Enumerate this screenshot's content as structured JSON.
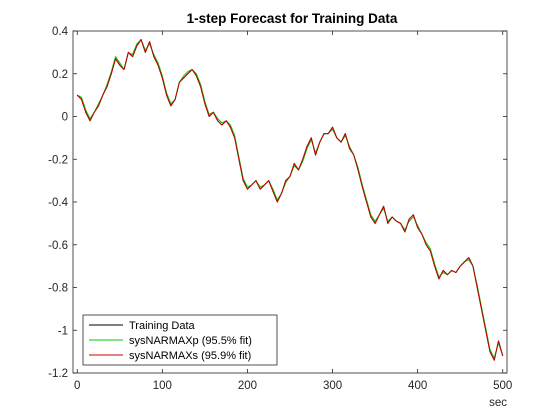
{
  "chart_data": {
    "type": "line",
    "title": "1-step Forecast for Training Data",
    "xlabel": "sec",
    "ylabel": "",
    "xlim": [
      -5,
      505
    ],
    "ylim": [
      -1.2,
      0.4
    ],
    "xticks": [
      0,
      100,
      200,
      300,
      400,
      500
    ],
    "yticks": [
      -1.2,
      -1,
      -0.8,
      -0.6,
      -0.4,
      -0.2,
      0,
      0.2,
      0.4
    ],
    "ytick_labels": [
      "-1.2",
      "-1",
      "-0.8",
      "-0.6",
      "-0.4",
      "-0.2",
      "0",
      "0.2",
      "0.4"
    ],
    "grid": false,
    "legend_position": "bottom-left",
    "x": [
      0,
      5,
      10,
      15,
      20,
      25,
      30,
      35,
      40,
      45,
      50,
      55,
      60,
      65,
      70,
      75,
      80,
      85,
      90,
      95,
      100,
      105,
      110,
      115,
      120,
      125,
      130,
      135,
      140,
      145,
      150,
      155,
      160,
      165,
      170,
      175,
      180,
      185,
      190,
      195,
      200,
      205,
      210,
      215,
      220,
      225,
      230,
      235,
      240,
      245,
      250,
      255,
      260,
      265,
      270,
      275,
      280,
      285,
      290,
      295,
      300,
      305,
      310,
      315,
      320,
      325,
      330,
      335,
      340,
      345,
      350,
      355,
      360,
      365,
      370,
      375,
      380,
      385,
      390,
      395,
      400,
      405,
      410,
      415,
      420,
      425,
      430,
      435,
      440,
      445,
      450,
      455,
      460,
      465,
      470,
      475,
      480,
      485,
      490,
      495,
      500
    ],
    "series": [
      {
        "name": "Training Data",
        "color": "#000000",
        "values": [
          0.1,
          0.08,
          0.02,
          -0.02,
          0.02,
          0.05,
          0.1,
          0.14,
          0.2,
          0.27,
          0.24,
          0.22,
          0.3,
          0.28,
          0.33,
          0.36,
          0.3,
          0.35,
          0.28,
          0.24,
          0.18,
          0.1,
          0.05,
          0.08,
          0.16,
          0.18,
          0.2,
          0.22,
          0.19,
          0.14,
          0.06,
          0.0,
          0.02,
          -0.02,
          -0.04,
          -0.02,
          -0.05,
          -0.1,
          -0.2,
          -0.3,
          -0.34,
          -0.32,
          -0.3,
          -0.34,
          -0.32,
          -0.3,
          -0.35,
          -0.4,
          -0.36,
          -0.3,
          -0.28,
          -0.22,
          -0.25,
          -0.2,
          -0.14,
          -0.1,
          -0.18,
          -0.12,
          -0.08,
          -0.08,
          -0.05,
          -0.1,
          -0.12,
          -0.08,
          -0.15,
          -0.18,
          -0.25,
          -0.33,
          -0.4,
          -0.47,
          -0.5,
          -0.46,
          -0.42,
          -0.5,
          -0.47,
          -0.49,
          -0.5,
          -0.54,
          -0.48,
          -0.46,
          -0.52,
          -0.55,
          -0.6,
          -0.63,
          -0.7,
          -0.76,
          -0.72,
          -0.74,
          -0.72,
          -0.73,
          -0.7,
          -0.68,
          -0.66,
          -0.7,
          -0.8,
          -0.9,
          -1.0,
          -1.1,
          -1.14,
          -1.05,
          -1.12
        ]
      },
      {
        "name": "sysNARMAXp (95.5% fit)",
        "color": "#00c800",
        "values": [
          0.1,
          0.09,
          0.03,
          -0.01,
          0.02,
          0.06,
          0.1,
          0.15,
          0.21,
          0.28,
          0.25,
          0.22,
          0.3,
          0.29,
          0.34,
          0.36,
          0.31,
          0.34,
          0.29,
          0.25,
          0.19,
          0.11,
          0.06,
          0.08,
          0.16,
          0.19,
          0.21,
          0.22,
          0.2,
          0.15,
          0.07,
          0.01,
          0.02,
          -0.01,
          -0.03,
          -0.02,
          -0.04,
          -0.09,
          -0.19,
          -0.29,
          -0.33,
          -0.32,
          -0.3,
          -0.33,
          -0.32,
          -0.3,
          -0.34,
          -0.39,
          -0.36,
          -0.31,
          -0.28,
          -0.23,
          -0.25,
          -0.21,
          -0.15,
          -0.11,
          -0.17,
          -0.12,
          -0.08,
          -0.08,
          -0.06,
          -0.1,
          -0.12,
          -0.09,
          -0.14,
          -0.18,
          -0.24,
          -0.32,
          -0.39,
          -0.46,
          -0.49,
          -0.46,
          -0.43,
          -0.49,
          -0.47,
          -0.49,
          -0.5,
          -0.53,
          -0.49,
          -0.47,
          -0.51,
          -0.55,
          -0.59,
          -0.62,
          -0.69,
          -0.75,
          -0.73,
          -0.74,
          -0.72,
          -0.73,
          -0.7,
          -0.68,
          -0.67,
          -0.7,
          -0.79,
          -0.89,
          -0.99,
          -1.09,
          -1.13,
          -1.06,
          -1.12
        ]
      },
      {
        "name": "sysNARMAXs (95.9% fit)",
        "color": "#c80000",
        "values": [
          0.1,
          0.08,
          0.02,
          -0.02,
          0.02,
          0.05,
          0.1,
          0.14,
          0.2,
          0.27,
          0.24,
          0.22,
          0.3,
          0.28,
          0.33,
          0.36,
          0.3,
          0.35,
          0.28,
          0.24,
          0.18,
          0.1,
          0.05,
          0.08,
          0.16,
          0.18,
          0.2,
          0.22,
          0.19,
          0.14,
          0.06,
          0.0,
          0.02,
          -0.02,
          -0.04,
          -0.02,
          -0.05,
          -0.1,
          -0.2,
          -0.3,
          -0.34,
          -0.32,
          -0.3,
          -0.34,
          -0.32,
          -0.3,
          -0.35,
          -0.4,
          -0.36,
          -0.3,
          -0.28,
          -0.22,
          -0.25,
          -0.2,
          -0.14,
          -0.1,
          -0.18,
          -0.12,
          -0.08,
          -0.08,
          -0.05,
          -0.1,
          -0.12,
          -0.08,
          -0.15,
          -0.18,
          -0.25,
          -0.33,
          -0.4,
          -0.47,
          -0.5,
          -0.46,
          -0.42,
          -0.5,
          -0.47,
          -0.49,
          -0.5,
          -0.54,
          -0.48,
          -0.46,
          -0.52,
          -0.55,
          -0.6,
          -0.63,
          -0.7,
          -0.76,
          -0.72,
          -0.74,
          -0.72,
          -0.73,
          -0.7,
          -0.68,
          -0.66,
          -0.7,
          -0.8,
          -0.9,
          -1.0,
          -1.1,
          -1.14,
          -1.05,
          -1.12
        ]
      }
    ]
  }
}
